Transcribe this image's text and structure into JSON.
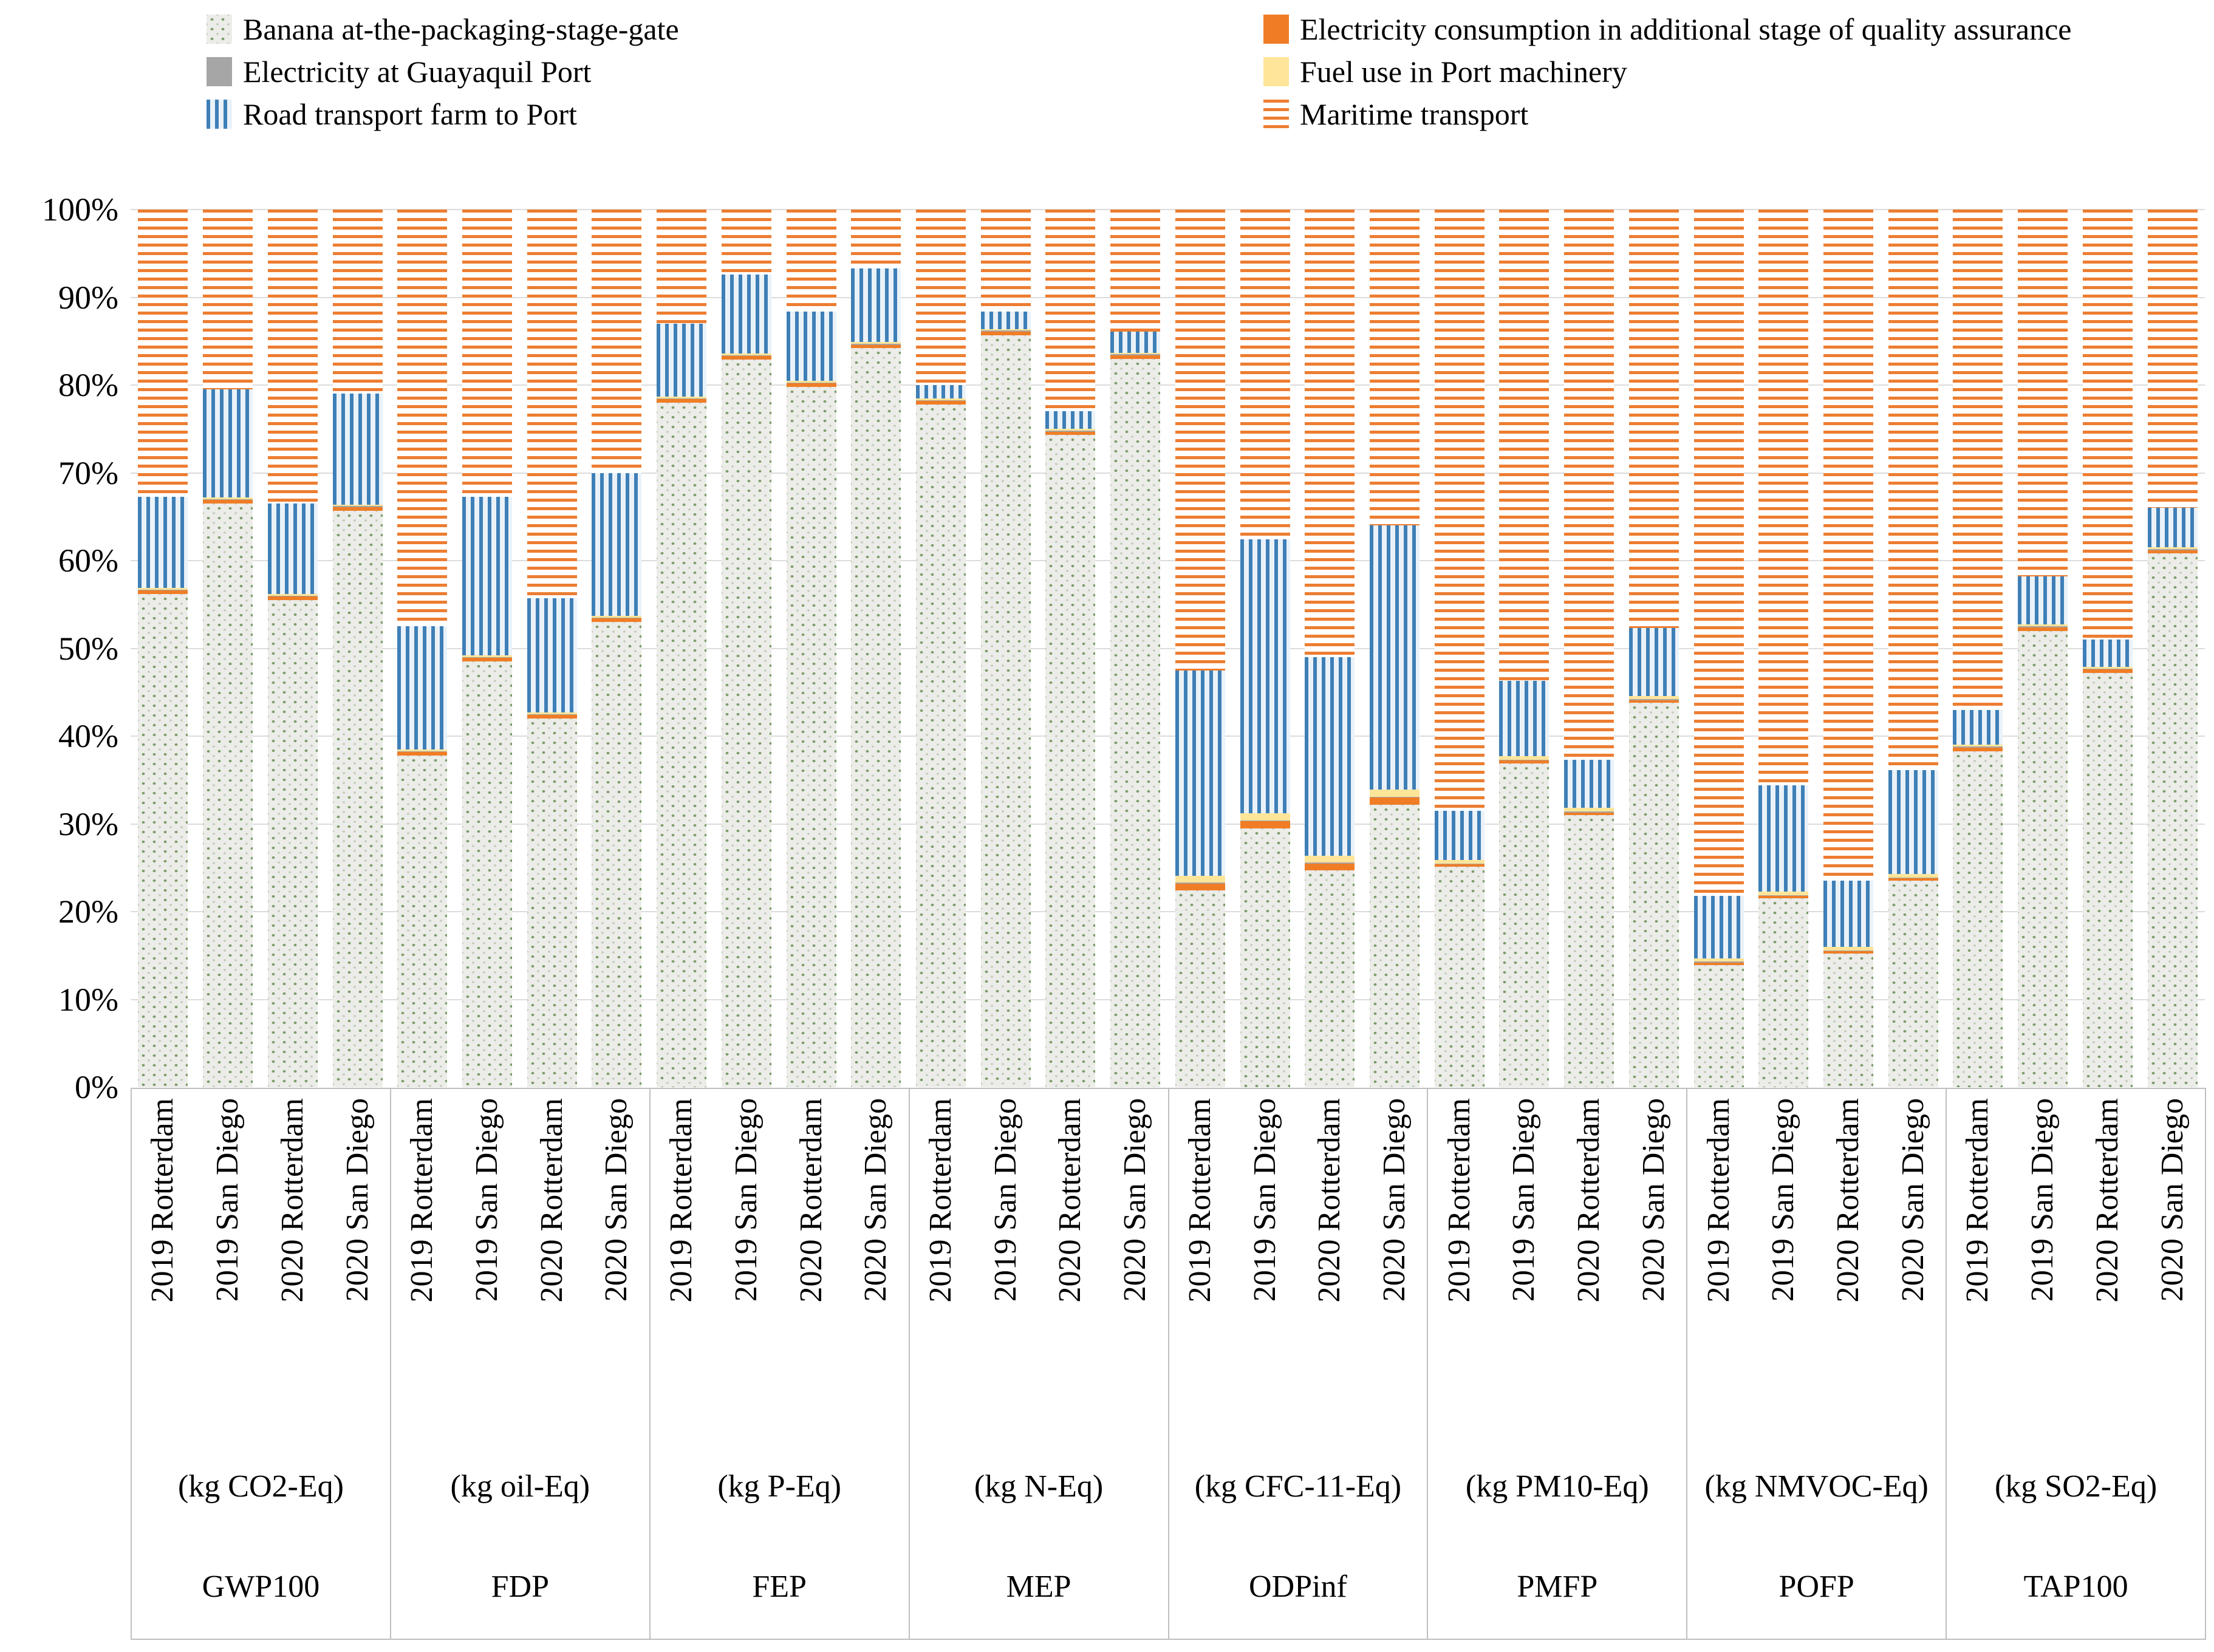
{
  "legend": {
    "columns": [
      [
        {
          "label": "Banana at-the-packaging-stage-gate",
          "series": "banana"
        },
        {
          "label": "Electricity at Guayaquil Port",
          "series": "electricity_guayaquil"
        },
        {
          "label": "Road transport farm to Port",
          "series": "road"
        }
      ],
      [
        {
          "label": "Electricity consumption in additional stage of quality assurance",
          "series": "electricity_qa"
        },
        {
          "label": "Fuel use in Port machinery",
          "series": "fuel"
        },
        {
          "label": "Maritime transport",
          "series": "maritime"
        }
      ]
    ]
  },
  "chart_data": {
    "type": "bar",
    "stacked": true,
    "percent_stacked": true,
    "title": "",
    "xlabel": "",
    "ylabel": "",
    "ylim": [
      0,
      100
    ],
    "grid": true,
    "legend_position": "top",
    "y_ticks": [
      "0%",
      "10%",
      "20%",
      "30%",
      "40%",
      "50%",
      "60%",
      "70%",
      "80%",
      "90%",
      "100%"
    ],
    "series_order": [
      "banana",
      "electricity_qa",
      "electricity_guayaquil",
      "fuel",
      "road",
      "maritime"
    ],
    "series_labels": {
      "banana": "Banana at-the-packaging-stage-gate",
      "electricity_qa": "Electricity consumption in additional stage of quality assurance",
      "electricity_guayaquil": "Electricity at Guayaquil Port",
      "fuel": "Fuel use in Port machinery",
      "road": "Road transport farm to Port",
      "maritime": "Maritime transport"
    },
    "colors": {
      "banana_bg": "#ECECE9",
      "banana_dot": "#7E9E6B",
      "electricity_qa": "#F07D26",
      "electricity_guayaquil": "#A6A6A6",
      "fuel": "#FFE599",
      "road_stripe": "#3E7FB7",
      "road_bg": "#EAF2F9",
      "maritime_stripe": "#ED7D31",
      "gridline": "#DCDCDC"
    },
    "categories_per_group": [
      "2019 Rotterdam",
      "2019 San Diego",
      "2020 Rotterdam",
      "2020 San Diego"
    ],
    "groups": [
      {
        "name": "GWP100",
        "unit": "(kg CO2-Eq)",
        "bars": [
          {
            "label": "2019 Rotterdam",
            "values": {
              "banana": 56.2,
              "electricity_qa": 0.4,
              "electricity_guayaquil": 0.1,
              "fuel": 0.2,
              "road": 10.4,
              "maritime": 32.7
            }
          },
          {
            "label": "2019 San Diego",
            "values": {
              "banana": 66.5,
              "electricity_qa": 0.4,
              "electricity_guayaquil": 0.1,
              "fuel": 0.2,
              "road": 12.3,
              "maritime": 20.5
            }
          },
          {
            "label": "2020 Rotterdam",
            "values": {
              "banana": 55.5,
              "electricity_qa": 0.4,
              "electricity_guayaquil": 0.1,
              "fuel": 0.2,
              "road": 10.3,
              "maritime": 33.5
            }
          },
          {
            "label": "2020 San Diego",
            "values": {
              "banana": 65.7,
              "electricity_qa": 0.4,
              "electricity_guayaquil": 0.1,
              "fuel": 0.2,
              "road": 12.6,
              "maritime": 21.0
            }
          }
        ]
      },
      {
        "name": "FDP",
        "unit": "(kg oil-Eq)",
        "bars": [
          {
            "label": "2019 Rotterdam",
            "values": {
              "banana": 37.8,
              "electricity_qa": 0.4,
              "electricity_guayaquil": 0.1,
              "fuel": 0.2,
              "road": 14.0,
              "maritime": 47.5
            }
          },
          {
            "label": "2019 San Diego",
            "values": {
              "banana": 48.5,
              "electricity_qa": 0.4,
              "electricity_guayaquil": 0.1,
              "fuel": 0.2,
              "road": 18.1,
              "maritime": 32.7
            }
          },
          {
            "label": "2020 Rotterdam",
            "values": {
              "banana": 42.0,
              "electricity_qa": 0.4,
              "electricity_guayaquil": 0.1,
              "fuel": 0.2,
              "road": 13.0,
              "maritime": 44.3
            }
          },
          {
            "label": "2020 San Diego",
            "values": {
              "banana": 53.0,
              "electricity_qa": 0.4,
              "electricity_guayaquil": 0.1,
              "fuel": 0.2,
              "road": 16.3,
              "maritime": 30.0
            }
          }
        ]
      },
      {
        "name": "FEP",
        "unit": "(kg P-Eq)",
        "bars": [
          {
            "label": "2019 Rotterdam",
            "values": {
              "banana": 78.0,
              "electricity_qa": 0.4,
              "electricity_guayaquil": 0.1,
              "fuel": 0.2,
              "road": 8.3,
              "maritime": 13.0
            }
          },
          {
            "label": "2019 San Diego",
            "values": {
              "banana": 82.9,
              "electricity_qa": 0.4,
              "electricity_guayaquil": 0.1,
              "fuel": 0.2,
              "road": 9.0,
              "maritime": 7.4
            }
          },
          {
            "label": "2020 Rotterdam",
            "values": {
              "banana": 79.8,
              "electricity_qa": 0.4,
              "electricity_guayaquil": 0.1,
              "fuel": 0.2,
              "road": 7.9,
              "maritime": 11.6
            }
          },
          {
            "label": "2020 San Diego",
            "values": {
              "banana": 84.2,
              "electricity_qa": 0.4,
              "electricity_guayaquil": 0.1,
              "fuel": 0.2,
              "road": 8.4,
              "maritime": 6.7
            }
          }
        ]
      },
      {
        "name": "MEP",
        "unit": "(kg N-Eq)",
        "bars": [
          {
            "label": "2019 Rotterdam",
            "values": {
              "banana": 77.8,
              "electricity_qa": 0.4,
              "electricity_guayaquil": 0.1,
              "fuel": 0.2,
              "road": 1.5,
              "maritime": 20.0
            }
          },
          {
            "label": "2019 San Diego",
            "values": {
              "banana": 85.7,
              "electricity_qa": 0.4,
              "electricity_guayaquil": 0.1,
              "fuel": 0.2,
              "road": 2.0,
              "maritime": 11.6
            }
          },
          {
            "label": "2020 Rotterdam",
            "values": {
              "banana": 74.3,
              "electricity_qa": 0.4,
              "electricity_guayaquil": 0.1,
              "fuel": 0.2,
              "road": 2.0,
              "maritime": 23.0
            }
          },
          {
            "label": "2020 San Diego",
            "values": {
              "banana": 83.0,
              "electricity_qa": 0.4,
              "electricity_guayaquil": 0.1,
              "fuel": 0.2,
              "road": 2.4,
              "maritime": 13.9
            }
          }
        ]
      },
      {
        "name": "ODPinf",
        "unit": "(kg CFC-11-Eq)",
        "bars": [
          {
            "label": "2019 Rotterdam",
            "values": {
              "banana": 22.4,
              "electricity_qa": 0.8,
              "electricity_guayaquil": 0.1,
              "fuel": 0.8,
              "road": 23.4,
              "maritime": 52.5
            }
          },
          {
            "label": "2019 San Diego",
            "values": {
              "banana": 29.5,
              "electricity_qa": 0.8,
              "electricity_guayaquil": 0.1,
              "fuel": 0.8,
              "road": 31.2,
              "maritime": 37.6
            }
          },
          {
            "label": "2020 Rotterdam",
            "values": {
              "banana": 24.7,
              "electricity_qa": 0.8,
              "electricity_guayaquil": 0.1,
              "fuel": 0.8,
              "road": 22.6,
              "maritime": 51.0
            }
          },
          {
            "label": "2020 San Diego",
            "values": {
              "banana": 32.2,
              "electricity_qa": 0.8,
              "electricity_guayaquil": 0.1,
              "fuel": 0.8,
              "road": 30.1,
              "maritime": 36.0
            }
          }
        ]
      },
      {
        "name": "PMFP",
        "unit": "(kg PM10-Eq)",
        "bars": [
          {
            "label": "2019 Rotterdam",
            "values": {
              "banana": 25.1,
              "electricity_qa": 0.3,
              "electricity_guayaquil": 0.1,
              "fuel": 0.4,
              "road": 5.6,
              "maritime": 68.5
            }
          },
          {
            "label": "2019 San Diego",
            "values": {
              "banana": 36.9,
              "electricity_qa": 0.3,
              "electricity_guayaquil": 0.1,
              "fuel": 0.4,
              "road": 8.6,
              "maritime": 53.7
            }
          },
          {
            "label": "2020 Rotterdam",
            "values": {
              "banana": 31.0,
              "electricity_qa": 0.3,
              "electricity_guayaquil": 0.1,
              "fuel": 0.4,
              "road": 5.5,
              "maritime": 62.7
            }
          },
          {
            "label": "2020 San Diego",
            "values": {
              "banana": 43.8,
              "electricity_qa": 0.3,
              "electricity_guayaquil": 0.1,
              "fuel": 0.4,
              "road": 7.7,
              "maritime": 47.7
            }
          }
        ]
      },
      {
        "name": "POFP",
        "unit": "(kg NMVOC-Eq)",
        "bars": [
          {
            "label": "2019 Rotterdam",
            "values": {
              "banana": 13.9,
              "electricity_qa": 0.3,
              "electricity_guayaquil": 0.1,
              "fuel": 0.4,
              "road": 7.1,
              "maritime": 78.2
            }
          },
          {
            "label": "2019 San Diego",
            "values": {
              "banana": 21.5,
              "electricity_qa": 0.3,
              "electricity_guayaquil": 0.1,
              "fuel": 0.4,
              "road": 12.1,
              "maritime": 65.6
            }
          },
          {
            "label": "2020 Rotterdam",
            "values": {
              "banana": 15.2,
              "electricity_qa": 0.3,
              "electricity_guayaquil": 0.1,
              "fuel": 0.4,
              "road": 7.5,
              "maritime": 76.5
            }
          },
          {
            "label": "2020 San Diego",
            "values": {
              "banana": 23.5,
              "electricity_qa": 0.3,
              "electricity_guayaquil": 0.1,
              "fuel": 0.4,
              "road": 11.8,
              "maritime": 63.9
            }
          }
        ]
      },
      {
        "name": "TAP100",
        "unit": "(kg SO2-Eq)",
        "bars": [
          {
            "label": "2019 Rotterdam",
            "values": {
              "banana": 38.3,
              "electricity_qa": 0.4,
              "electricity_guayaquil": 0.1,
              "fuel": 0.2,
              "road": 4.0,
              "maritime": 57.0
            }
          },
          {
            "label": "2019 San Diego",
            "values": {
              "banana": 52.0,
              "electricity_qa": 0.4,
              "electricity_guayaquil": 0.1,
              "fuel": 0.2,
              "road": 5.5,
              "maritime": 41.8
            }
          },
          {
            "label": "2020 Rotterdam",
            "values": {
              "banana": 47.2,
              "electricity_qa": 0.4,
              "electricity_guayaquil": 0.1,
              "fuel": 0.2,
              "road": 3.1,
              "maritime": 49.0
            }
          },
          {
            "label": "2020 San Diego",
            "values": {
              "banana": 60.8,
              "electricity_qa": 0.4,
              "electricity_guayaquil": 0.1,
              "fuel": 0.2,
              "road": 4.5,
              "maritime": 34.0
            }
          }
        ]
      }
    ]
  }
}
